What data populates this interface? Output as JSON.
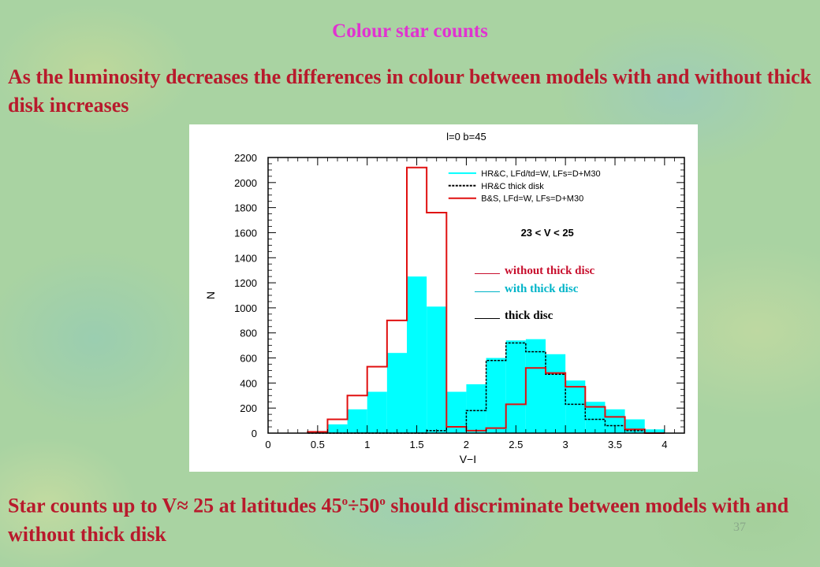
{
  "slide": {
    "title": "Colour star counts",
    "intro": "As the luminosity decreases the differences in colour between models with and  without thick disk increases",
    "conclusion_a": "Star counts up to V",
    "conclusion_approx": "≈",
    "conclusion_b": " 25 at latitudes 45",
    "conclusion_deg1": "o",
    "conclusion_div": "÷",
    "conclusion_c": "50",
    "conclusion_deg2": "o",
    "conclusion_d": " should discriminate between models with and  without thick disk",
    "page_number": "37"
  },
  "overlay_legend": [
    {
      "label": "without thick disc",
      "color": "#c8102e"
    },
    {
      "label": "with thick disc",
      "color": "#00b4c8"
    },
    {
      "label": "thick disc",
      "color": "#000000"
    }
  ],
  "colors": {
    "fill_series": "#00ffff",
    "red_series": "#e01010",
    "black_series": "#000000"
  },
  "chart_data": {
    "type": "histogram",
    "title": "l=0  b=45",
    "annotation": "23 < V < 25",
    "xlabel": "V−I",
    "ylabel": "N",
    "xlim": [
      0,
      4.2
    ],
    "ylim": [
      0,
      2200
    ],
    "xticks": [
      "0",
      "0.5",
      "1",
      "1.5",
      "2",
      "2.5",
      "3",
      "3.5",
      "4"
    ],
    "yticks": [
      "0",
      "200",
      "400",
      "600",
      "800",
      "1000",
      "1200",
      "1400",
      "1600",
      "1800",
      "2000",
      "2200"
    ],
    "bin_edges": [
      0.4,
      0.6,
      0.8,
      1.0,
      1.2,
      1.4,
      1.6,
      1.8,
      2.0,
      2.2,
      2.4,
      2.6,
      2.8,
      3.0,
      3.2,
      3.4,
      3.6,
      3.8,
      4.0
    ],
    "series": [
      {
        "name": "HR&C, LFd/td=W, LFs=D+M30",
        "style": "filled",
        "values": [
          0,
          70,
          190,
          330,
          640,
          1250,
          1010,
          330,
          390,
          600,
          740,
          750,
          630,
          420,
          250,
          190,
          110,
          30
        ]
      },
      {
        "name": "HR&C thick disk",
        "style": "dashed",
        "values": [
          0,
          0,
          0,
          0,
          0,
          0,
          20,
          50,
          180,
          580,
          720,
          650,
          470,
          230,
          110,
          60,
          20,
          0
        ]
      },
      {
        "name": "B&S, LFd=W, LFs=D+M30",
        "style": "solid",
        "values": [
          10,
          110,
          300,
          530,
          900,
          2120,
          1760,
          50,
          20,
          40,
          230,
          520,
          480,
          370,
          210,
          130,
          30,
          0
        ]
      }
    ]
  }
}
